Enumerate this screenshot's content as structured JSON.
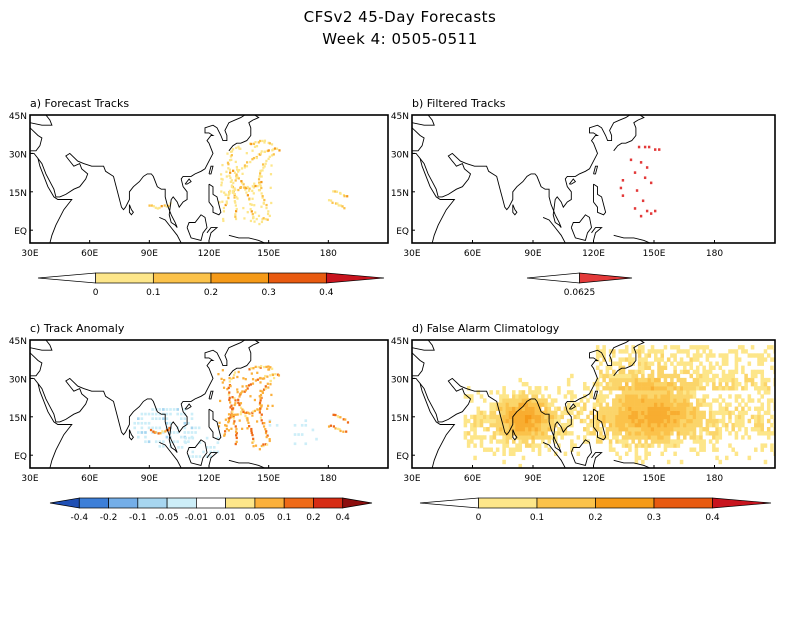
{
  "title_line1": "CFSv2 45-Day Forecasts",
  "title_line2": "Week 4: 0505-0511",
  "panels": [
    {
      "id": "a",
      "label": "a) Forecast Tracks",
      "lat_labels": [
        "45N",
        "30N",
        "15N",
        "EQ"
      ],
      "lon_labels": [
        "30E",
        "60E",
        "90E",
        "120E",
        "150E",
        "180"
      ],
      "colorbar": {
        "labels": [
          "0",
          "0.1",
          "0.2",
          "0.3",
          "0.4"
        ],
        "colors": [
          "#ffffff",
          "#fde68a",
          "#fbc24a",
          "#f59a18",
          "#e85a10",
          "#c8141e"
        ]
      }
    },
    {
      "id": "b",
      "label": "b) Filtered Tracks",
      "lat_labels": [
        "45N",
        "30N",
        "15N",
        "EQ"
      ],
      "lon_labels": [
        "30E",
        "60E",
        "90E",
        "120E",
        "150E",
        "180"
      ],
      "colorbar": {
        "labels": [
          "0.0625"
        ],
        "colors": [
          "#ffffff",
          "#e33a3a"
        ]
      }
    },
    {
      "id": "c",
      "label": "c) Track Anomaly",
      "lat_labels": [
        "45N",
        "30N",
        "15N",
        "EQ"
      ],
      "lon_labels": [
        "30E",
        "60E",
        "90E",
        "120E",
        "150E",
        "180"
      ],
      "colorbar": {
        "labels": [
          "-0.4",
          "-0.2",
          "-0.1",
          "-0.05",
          "-0.01",
          "0.01",
          "0.05",
          "0.1",
          "0.2",
          "0.4"
        ],
        "colors": [
          "#1f4fb4",
          "#3d7fd8",
          "#74aee8",
          "#a7d6f0",
          "#cdeef8",
          "#ffffff",
          "#fde68a",
          "#fbb03b",
          "#ef6a17",
          "#d62c14",
          "#8c0d0d"
        ]
      }
    },
    {
      "id": "d",
      "label": "d) False Alarm Climatology",
      "lat_labels": [
        "45N",
        "30N",
        "15N",
        "EQ"
      ],
      "lon_labels": [
        "30E",
        "60E",
        "90E",
        "120E",
        "150E",
        "180"
      ],
      "colorbar": {
        "labels": [
          "0",
          "0.1",
          "0.2",
          "0.3",
          "0.4"
        ],
        "colors": [
          "#ffffff",
          "#fde68a",
          "#fbc24a",
          "#f59a18",
          "#e85a10",
          "#c8141e"
        ]
      }
    }
  ],
  "colors": {
    "coast": "#000000",
    "yellow": "#fde68a",
    "orange": "#f5a623",
    "red": "#e33a3a",
    "lightblue": "#bfe8f5"
  }
}
